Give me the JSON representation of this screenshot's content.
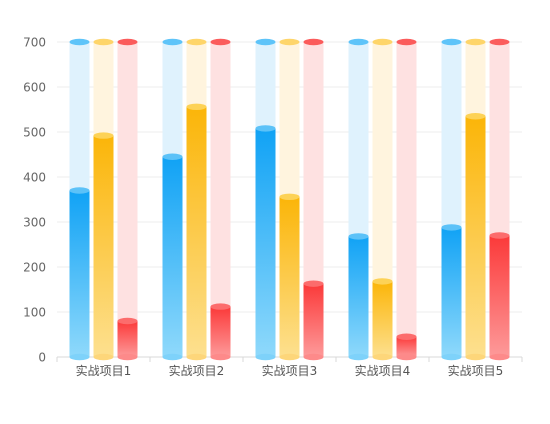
{
  "chart_data": {
    "type": "bar",
    "categories": [
      "实战项目1",
      "实战项目2",
      "实战项目3",
      "实战项目4",
      "实战项目5"
    ],
    "series": [
      {
        "values": [
          370,
          445,
          508,
          268,
          288
        ],
        "color": "#1aa7f5"
      },
      {
        "values": [
          492,
          556,
          356,
          168,
          535
        ],
        "color": "#fbb914"
      },
      {
        "values": [
          80,
          112,
          163,
          45,
          270
        ],
        "color": "#fa4343"
      }
    ],
    "background_max": 700,
    "ylim": [
      0,
      700
    ],
    "yticks": [
      0,
      100,
      200,
      300,
      400,
      500,
      600,
      700
    ],
    "grid": true,
    "style": "3d-cylinder"
  }
}
